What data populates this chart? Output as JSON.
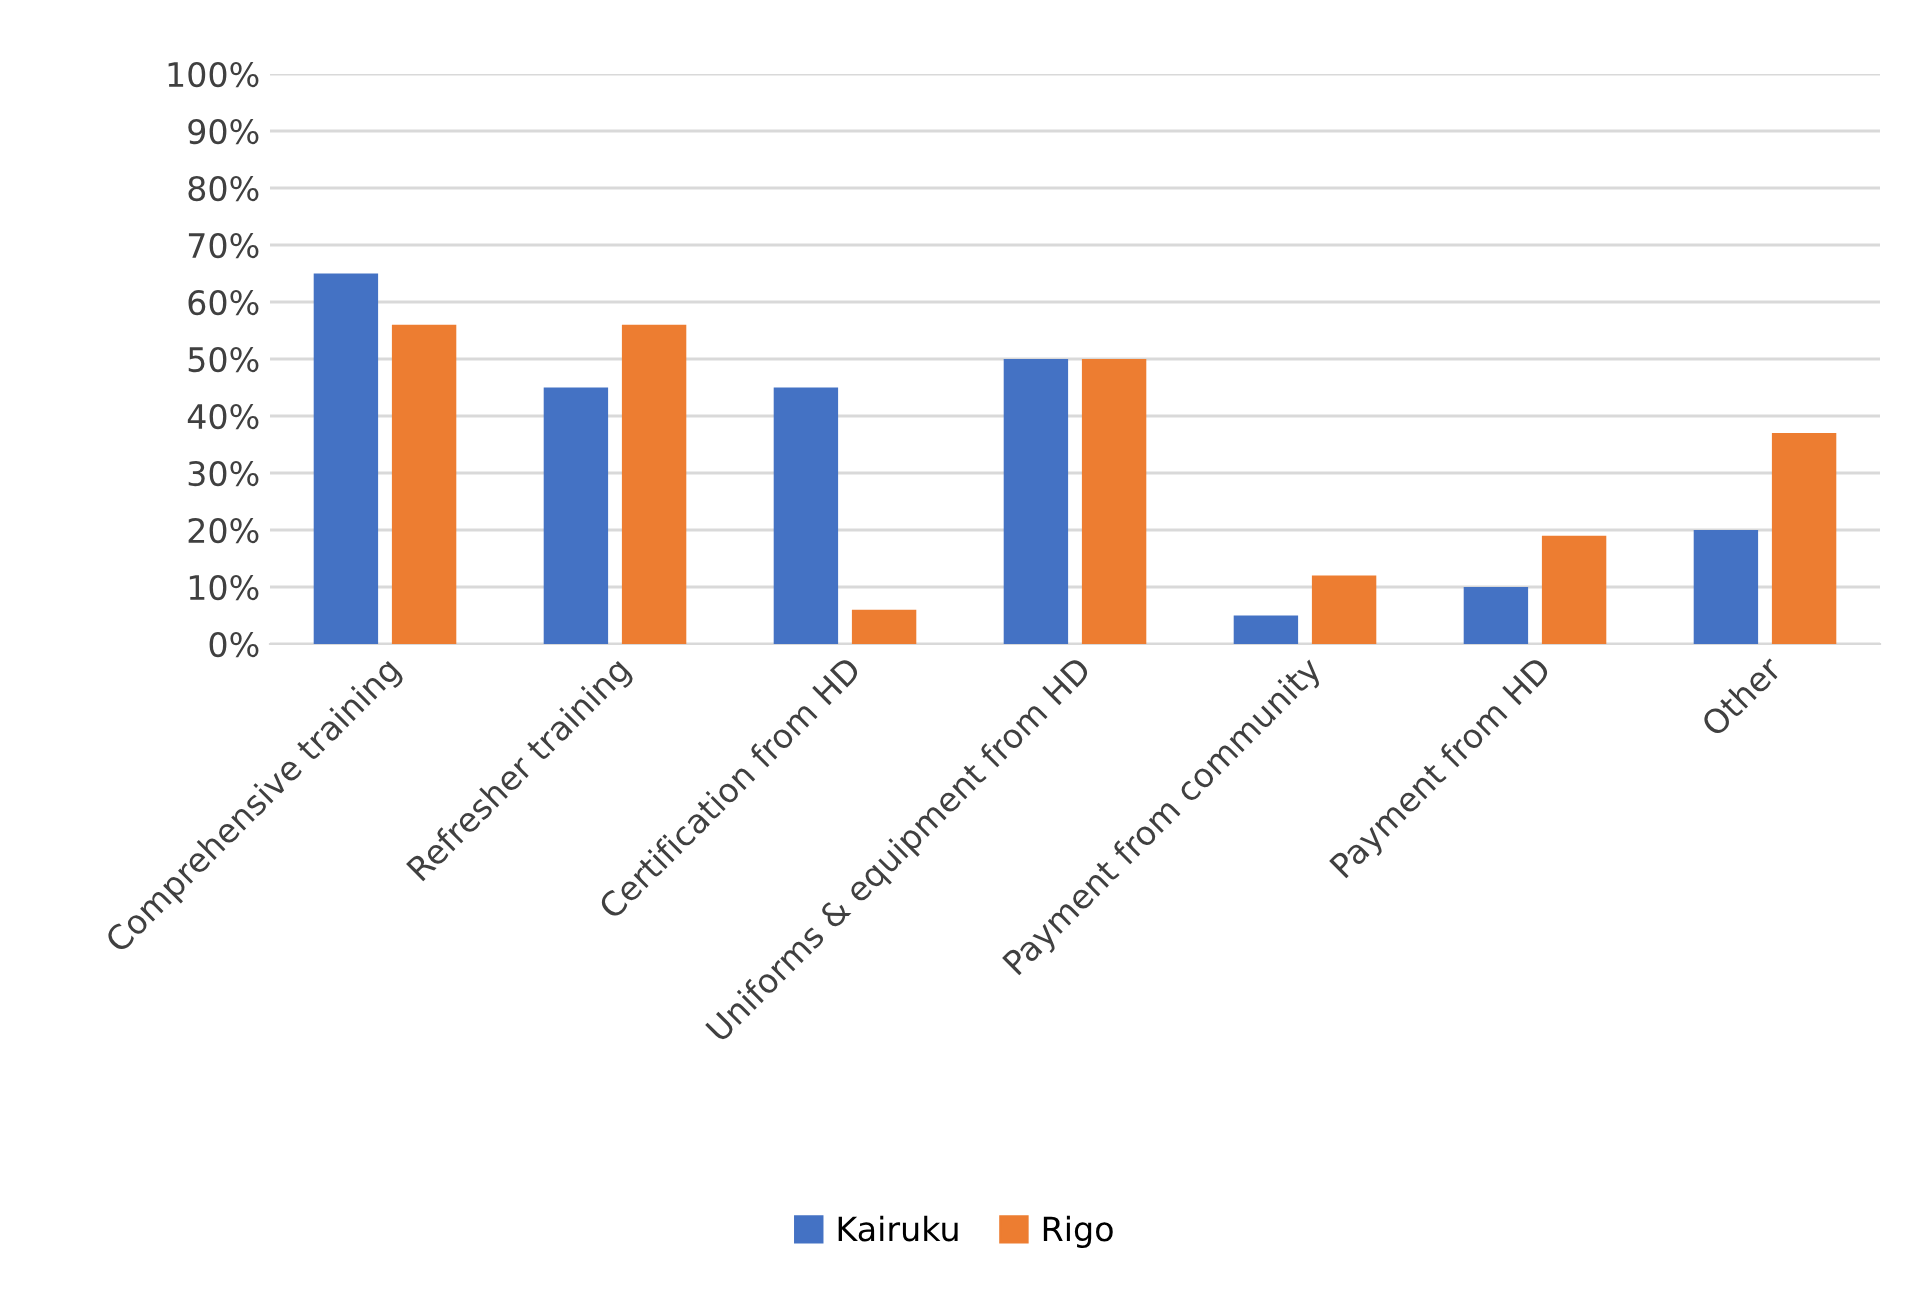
{
  "chart_data": {
    "type": "bar",
    "categories": [
      "Comprehensive training",
      "Refresher training",
      "Certification from HD",
      "Uniforms & equipment from HD",
      "Payment from community",
      "Payment from HD",
      "Other"
    ],
    "series": [
      {
        "name": "Kairuku",
        "color": "#4472c4",
        "values": [
          65,
          45,
          45,
          50,
          5,
          10,
          20
        ]
      },
      {
        "name": "Rigo",
        "color": "#ed7d31",
        "values": [
          56,
          56,
          6,
          50,
          12,
          19,
          37
        ]
      }
    ],
    "ylim": [
      0,
      100
    ],
    "yticks": [
      {
        "value": 0,
        "label": "0%"
      },
      {
        "value": 10,
        "label": "10%"
      },
      {
        "value": 20,
        "label": "20%"
      },
      {
        "value": 30,
        "label": "30%"
      },
      {
        "value": 40,
        "label": "40%"
      },
      {
        "value": 50,
        "label": "50%"
      },
      {
        "value": 60,
        "label": "60%"
      },
      {
        "value": 70,
        "label": "70%"
      },
      {
        "value": 80,
        "label": "80%"
      },
      {
        "value": 90,
        "label": "90%"
      },
      {
        "value": 100,
        "label": "100%"
      }
    ],
    "grid": "y",
    "legend": "bottom"
  }
}
